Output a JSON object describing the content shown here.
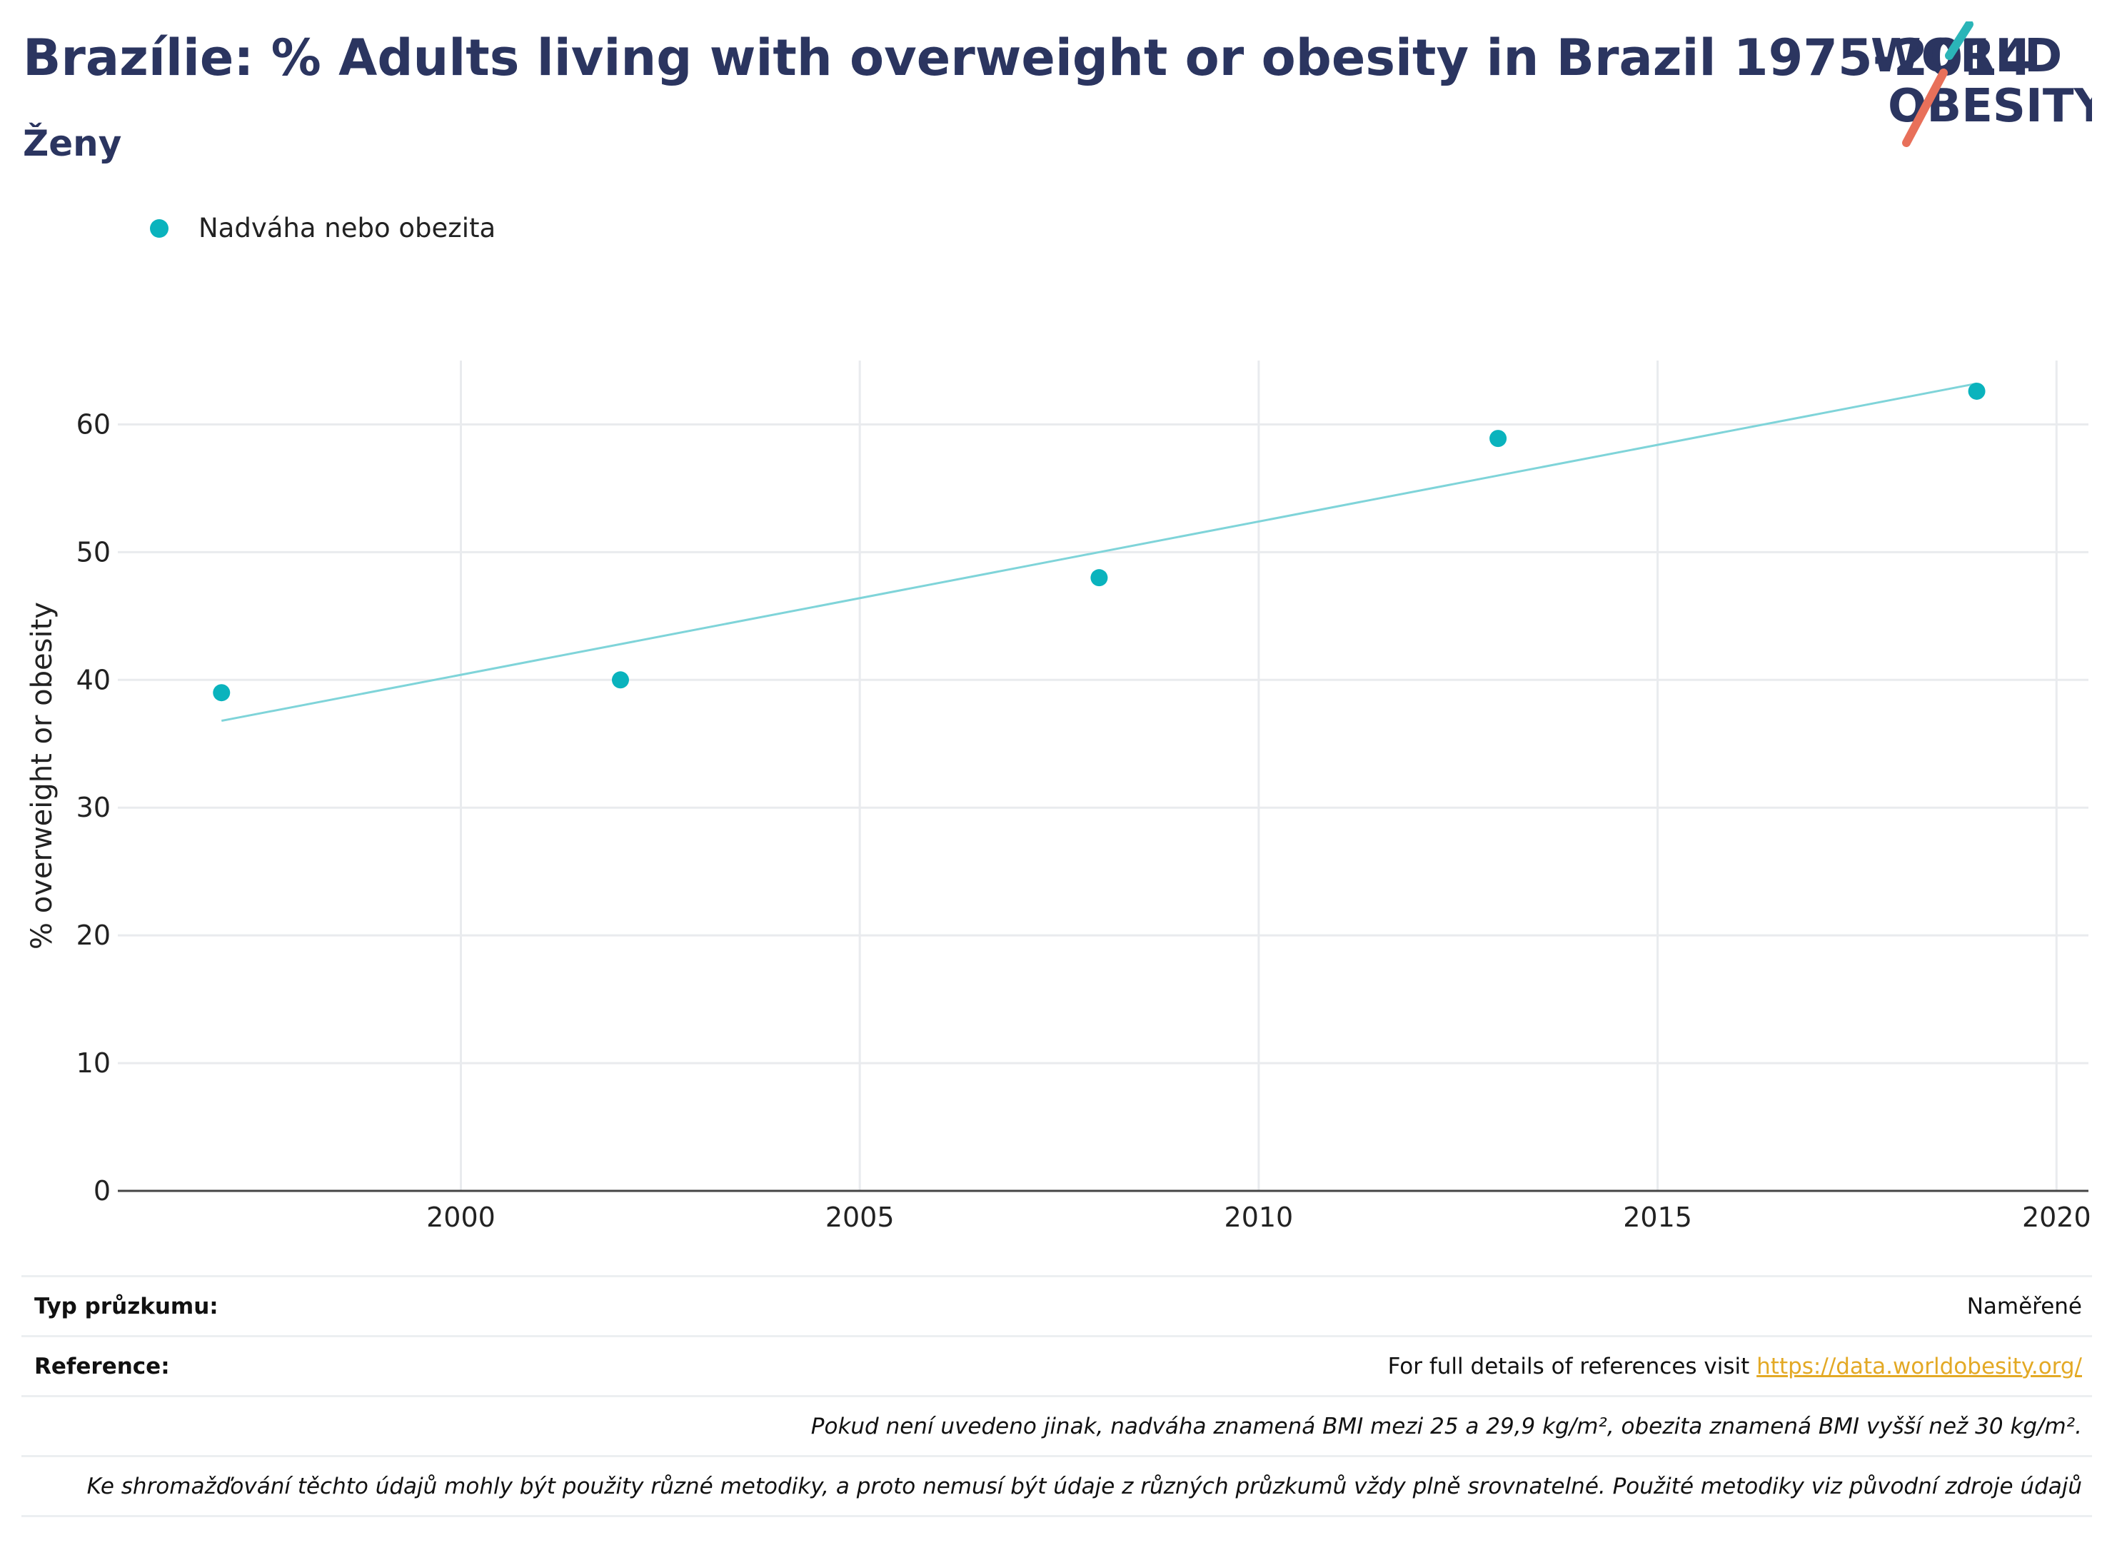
{
  "header": {
    "title": "Brazílie: % Adults living with overweight or obesity in Brazil 1975-2014",
    "subtitle": "Ženy",
    "logo_text_1": "WORLD",
    "logo_text_2": "OBESITY"
  },
  "legend": {
    "label": "Nadváha nebo obezita"
  },
  "colors": {
    "points": "#0ab3bd",
    "trend": "#7fd4d9",
    "title": "#2b3560",
    "link": "#e3a925",
    "logo_teal": "#2bb5b8",
    "logo_red": "#e8705a"
  },
  "chart_data": {
    "type": "scatter",
    "ylabel": "% overweight or obesity",
    "xlabel": "",
    "xlim": [
      1995.7,
      2020.4
    ],
    "ylim": [
      0,
      65
    ],
    "x_ticks": [
      2000,
      2005,
      2010,
      2015,
      2020
    ],
    "y_ticks": [
      0,
      10,
      20,
      30,
      40,
      50,
      60
    ],
    "grid": true,
    "legend_position": "top-left",
    "series": [
      {
        "name": "Nadváha nebo obezita",
        "x": [
          1997,
          2002,
          2008,
          2013,
          2019
        ],
        "y": [
          39,
          40,
          48,
          58.9,
          62.6
        ]
      }
    ],
    "trendline": {
      "x": [
        1997,
        2019
      ],
      "y": [
        36.8,
        63.2
      ]
    }
  },
  "footer": {
    "survey_label": "Typ průzkumu:",
    "survey_value": "Naměřené",
    "reference_label": "Reference:",
    "reference_text": "For full details of references visit",
    "reference_link": "https://data.worldobesity.org/",
    "note_bmi": "Pokud není uvedeno jinak, nadváha znamená BMI mezi 25 a 29,9 kg/m², obezita znamená BMI vyšší než 30 kg/m².",
    "note_methods": "Ke shromažďování těchto údajů mohly být použity různé metodiky, a proto nemusí být údaje z různých průzkumů vždy plně srovnatelné. Použité metodiky viz původní zdroje údajů"
  }
}
